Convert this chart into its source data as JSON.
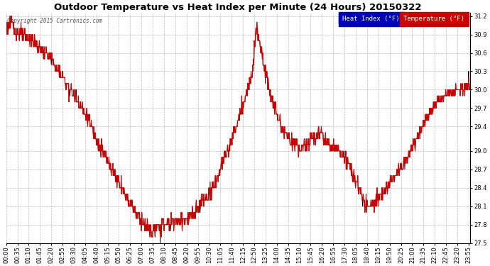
{
  "title": "Outdoor Temperature vs Heat Index per Minute (24 Hours) 20150322",
  "copyright": "Copyright 2015 Cartronics.com",
  "ylim": [
    27.5,
    31.25
  ],
  "yticks": [
    27.5,
    27.8,
    28.1,
    28.4,
    28.7,
    29.0,
    29.4,
    29.7,
    30.0,
    30.3,
    30.6,
    30.9,
    31.2
  ],
  "legend_heat_index_color": "#0000bb",
  "legend_temp_color": "#cc0000",
  "line_heat_color": "#000000",
  "line_temp_color": "#cc0000",
  "background_color": "#ffffff",
  "grid_color": "#bbbbbb",
  "title_fontsize": 9.5,
  "tick_fontsize": 6,
  "n_minutes": 1440,
  "xtick_step": 35
}
